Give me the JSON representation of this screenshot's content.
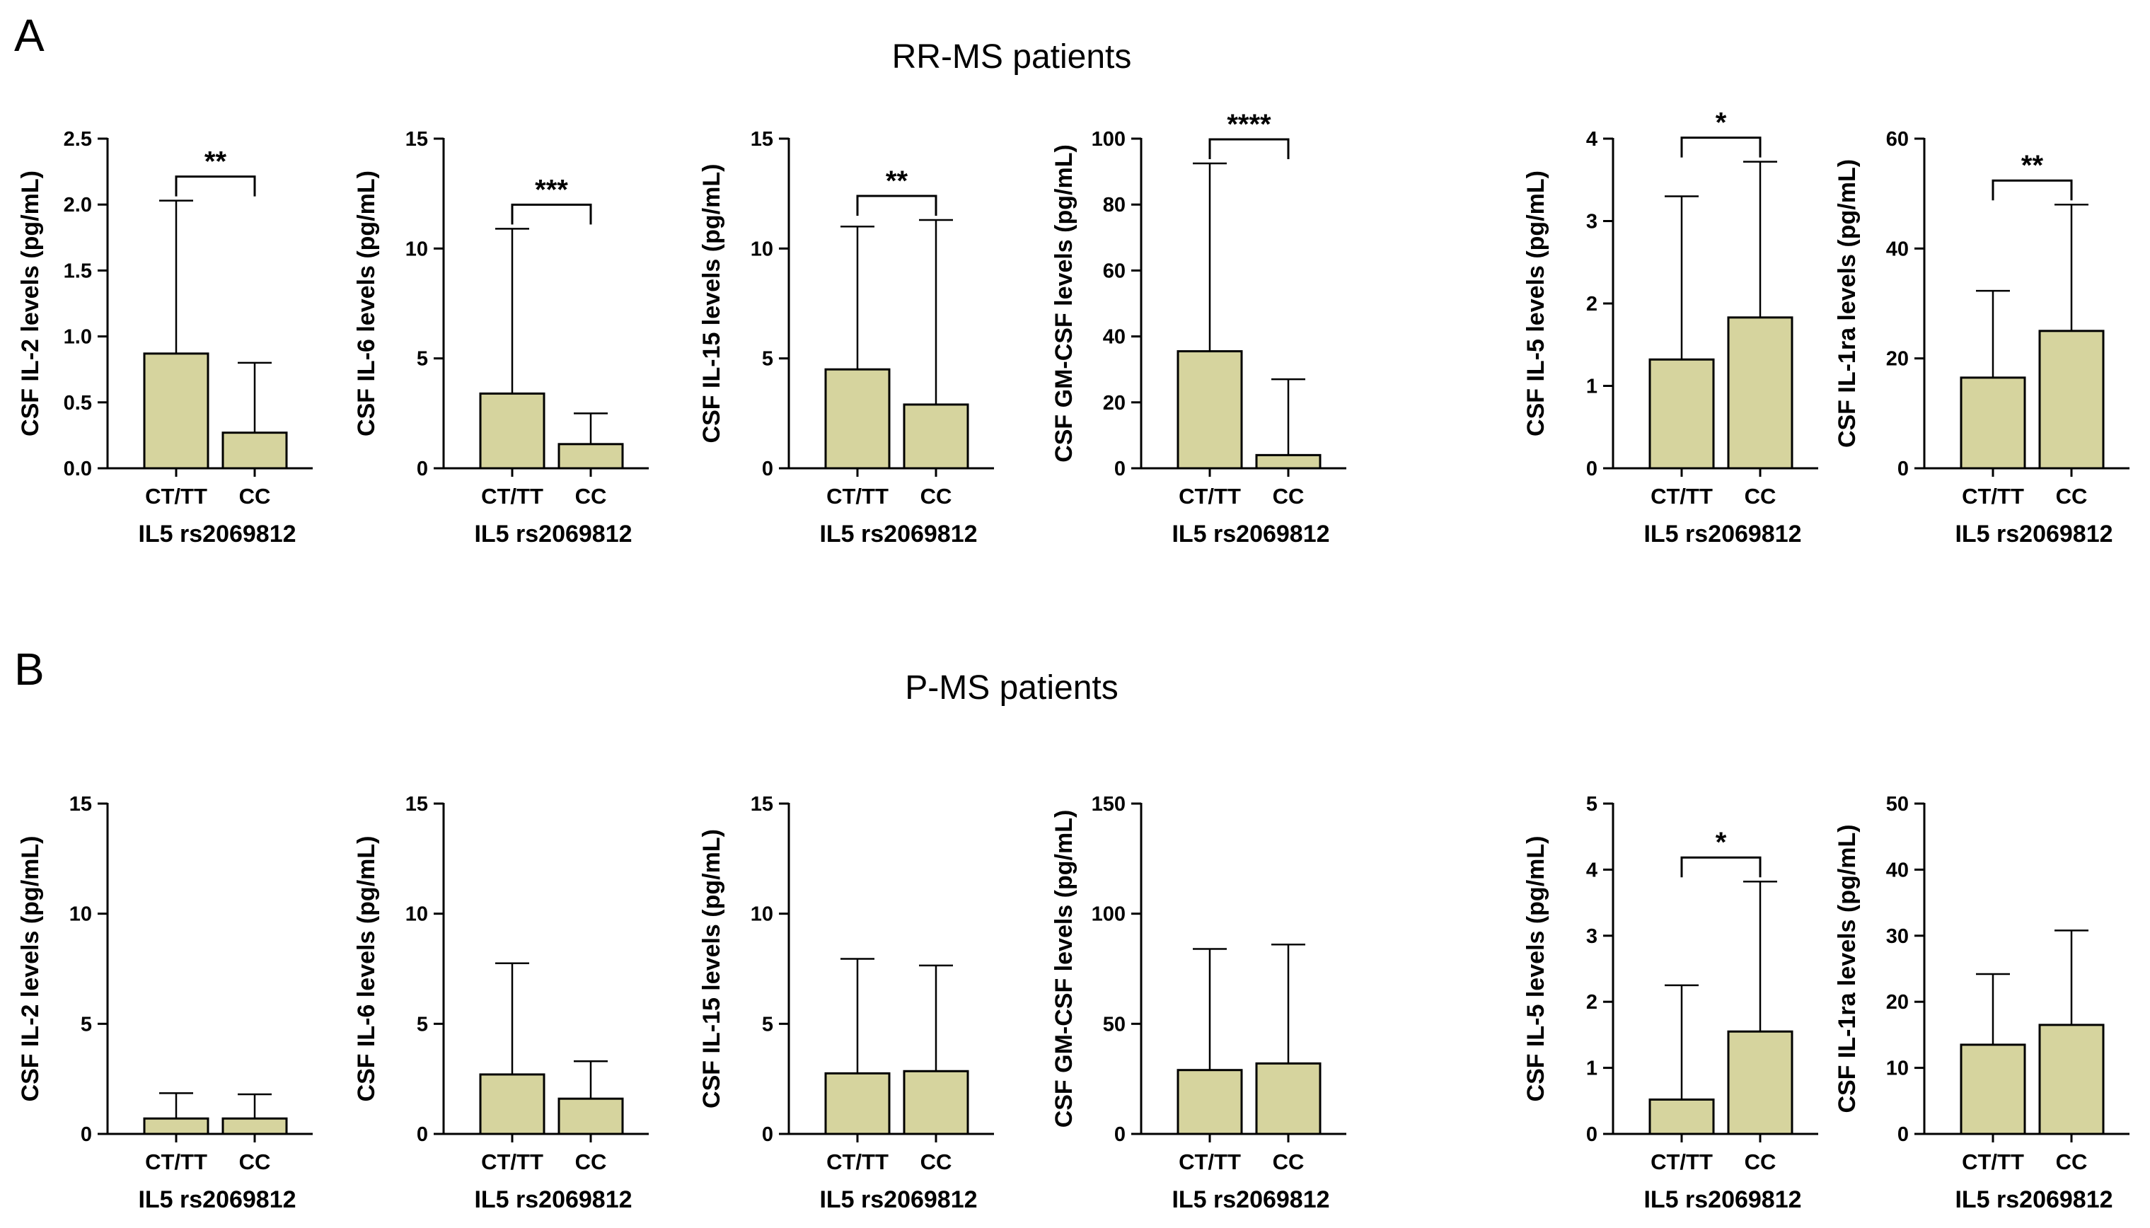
{
  "figure": {
    "panels": [
      {
        "letter": "A",
        "title": "RR-MS patients"
      },
      {
        "letter": "B",
        "title": "P-MS patients"
      }
    ],
    "bar_color": "#d6d49e",
    "line_color": "#000000"
  },
  "chart_data": [
    {
      "type": "bar",
      "panel": "A",
      "ylabel": "CSF IL-2 levels (pg/mL)",
      "xlabel": "IL5 rs2069812",
      "categories": [
        "CT/TT",
        "CC"
      ],
      "values": [
        0.87,
        0.27
      ],
      "error_upper": [
        2.03,
        0.8
      ],
      "ylim": [
        0,
        2.5
      ],
      "yticks": [
        0,
        0.5,
        1.0,
        1.5,
        2.0,
        2.5
      ],
      "ytick_labels": [
        "0.0",
        "0.5",
        "1.0",
        "1.5",
        "2.0",
        "2.5"
      ],
      "significance": "**"
    },
    {
      "type": "bar",
      "panel": "A",
      "ylabel": "CSF IL-6 levels (pg/mL)",
      "xlabel": "IL5 rs2069812",
      "categories": [
        "CT/TT",
        "CC"
      ],
      "values": [
        3.4,
        1.1
      ],
      "error_upper": [
        10.9,
        2.5
      ],
      "ylim": [
        0,
        15
      ],
      "yticks": [
        0,
        5,
        10,
        15
      ],
      "ytick_labels": [
        "0",
        "5",
        "10",
        "15"
      ],
      "significance": "***"
    },
    {
      "type": "bar",
      "panel": "A",
      "ylabel": "CSF IL-15 levels (pg/mL)",
      "xlabel": "IL5 rs2069812",
      "categories": [
        "CT/TT",
        "CC"
      ],
      "values": [
        4.5,
        2.9
      ],
      "error_upper": [
        11.0,
        11.3
      ],
      "ylim": [
        0,
        15
      ],
      "yticks": [
        0,
        5,
        10,
        15
      ],
      "ytick_labels": [
        "0",
        "5",
        "10",
        "15"
      ],
      "significance": "**"
    },
    {
      "type": "bar",
      "panel": "A",
      "ylabel": "CSF GM-CSF levels (pg/mL)",
      "xlabel": "IL5 rs2069812",
      "categories": [
        "CT/TT",
        "CC"
      ],
      "values": [
        35.5,
        4.0
      ],
      "error_upper": [
        92.5,
        27.0
      ],
      "ylim": [
        0,
        100
      ],
      "yticks": [
        0,
        20,
        40,
        60,
        80,
        100
      ],
      "ytick_labels": [
        "0",
        "20",
        "40",
        "60",
        "80",
        "100"
      ],
      "significance": "****"
    },
    {
      "type": "bar",
      "panel": "A",
      "ylabel": "CSF IL-5 levels (pg/mL)",
      "xlabel": "IL5 rs2069812",
      "categories": [
        "CT/TT",
        "CC"
      ],
      "values": [
        1.32,
        1.83
      ],
      "error_upper": [
        3.3,
        3.72
      ],
      "ylim": [
        0,
        4
      ],
      "yticks": [
        0,
        1,
        2,
        3,
        4
      ],
      "ytick_labels": [
        "0",
        "1",
        "2",
        "3",
        "4"
      ],
      "significance": "*"
    },
    {
      "type": "bar",
      "panel": "A",
      "ylabel": "CSF IL-1ra levels (pg/mL)",
      "xlabel": "IL5 rs2069812",
      "categories": [
        "CT/TT",
        "CC"
      ],
      "values": [
        16.5,
        25.0
      ],
      "error_upper": [
        32.3,
        48.0
      ],
      "ylim": [
        0,
        60
      ],
      "yticks": [
        0,
        20,
        40,
        60
      ],
      "ytick_labels": [
        "0",
        "20",
        "40",
        "60"
      ],
      "significance": "**"
    },
    {
      "type": "bar",
      "panel": "B",
      "ylabel": "CSF IL-2 levels (pg/mL)",
      "xlabel": "IL5 rs2069812",
      "categories": [
        "CT/TT",
        "CC"
      ],
      "values": [
        0.7,
        0.7
      ],
      "error_upper": [
        1.85,
        1.8
      ],
      "ylim": [
        0,
        15
      ],
      "yticks": [
        0,
        5,
        10,
        15
      ],
      "ytick_labels": [
        "0",
        "5",
        "10",
        "15"
      ],
      "significance": ""
    },
    {
      "type": "bar",
      "panel": "B",
      "ylabel": "CSF IL-6 levels (pg/mL)",
      "xlabel": "IL5 rs2069812",
      "categories": [
        "CT/TT",
        "CC"
      ],
      "values": [
        2.7,
        1.6
      ],
      "error_upper": [
        7.75,
        3.3
      ],
      "ylim": [
        0,
        15
      ],
      "yticks": [
        0,
        5,
        10,
        15
      ],
      "ytick_labels": [
        "0",
        "5",
        "10",
        "15"
      ],
      "significance": ""
    },
    {
      "type": "bar",
      "panel": "B",
      "ylabel": "CSF IL-15 levels (pg/mL)",
      "xlabel": "IL5 rs2069812",
      "categories": [
        "CT/TT",
        "CC"
      ],
      "values": [
        2.75,
        2.85
      ],
      "error_upper": [
        7.95,
        7.65
      ],
      "ylim": [
        0,
        15
      ],
      "yticks": [
        0,
        5,
        10,
        15
      ],
      "ytick_labels": [
        "0",
        "5",
        "10",
        "15"
      ],
      "significance": ""
    },
    {
      "type": "bar",
      "panel": "B",
      "ylabel": "CSF GM-CSF levels (pg/mL)",
      "xlabel": "IL5 rs2069812",
      "categories": [
        "CT/TT",
        "CC"
      ],
      "values": [
        29.0,
        32.0
      ],
      "error_upper": [
        84.0,
        86.0
      ],
      "ylim": [
        0,
        150
      ],
      "yticks": [
        0,
        50,
        100,
        150
      ],
      "ytick_labels": [
        "0",
        "50",
        "100",
        "150"
      ],
      "significance": ""
    },
    {
      "type": "bar",
      "panel": "B",
      "ylabel": "CSF IL-5 levels (pg/mL)",
      "xlabel": "IL5 rs2069812",
      "categories": [
        "CT/TT",
        "CC"
      ],
      "values": [
        0.52,
        1.55
      ],
      "error_upper": [
        2.25,
        3.82
      ],
      "ylim": [
        0,
        5
      ],
      "yticks": [
        0,
        1,
        2,
        3,
        4,
        5
      ],
      "ytick_labels": [
        "0",
        "1",
        "2",
        "3",
        "4",
        "5"
      ],
      "significance": "*"
    },
    {
      "type": "bar",
      "panel": "B",
      "ylabel": "CSF IL-1ra levels (pg/mL)",
      "xlabel": "IL5 rs2069812",
      "categories": [
        "CT/TT",
        "CC"
      ],
      "values": [
        13.5,
        16.5
      ],
      "error_upper": [
        24.2,
        30.8
      ],
      "ylim": [
        0,
        50
      ],
      "yticks": [
        0,
        10,
        20,
        30,
        40,
        50
      ],
      "ytick_labels": [
        "0",
        "10",
        "20",
        "30",
        "40",
        "50"
      ],
      "significance": ""
    }
  ]
}
